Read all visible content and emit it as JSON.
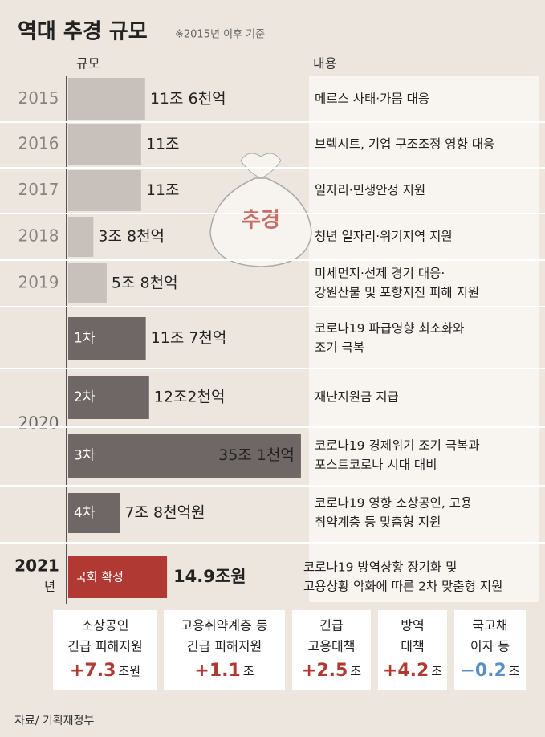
{
  "title": "역대 추경 규모",
  "note": "※2015년 이후 기준",
  "illustration_label": "추경",
  "chart_data": {
    "type": "bar",
    "column_headers": [
      "규모",
      "내용"
    ],
    "categories": [
      "2015",
      "2016",
      "2017",
      "2018",
      "2019",
      "1차",
      "2차",
      "3차",
      "4차",
      "국회 확정"
    ],
    "values": [
      11.6,
      11,
      11,
      3.8,
      5.8,
      11.7,
      12.2,
      35.1,
      7.8,
      14.9
    ],
    "value_labels": [
      "11조 6천억",
      "11조",
      "11조",
      "3조 8천억",
      "5조 8천억",
      "11조 7천억",
      "12조2천억",
      "35조 1천억",
      "7조 8천억원",
      "14.9조원"
    ],
    "descriptions": [
      [
        "메르스 사태·가뭄 대응"
      ],
      [
        "브렉시트, 기업 구조조정 영향 대응"
      ],
      [
        "일자리·민생안정 지원"
      ],
      [
        "청년 일자리·위기지역 지원"
      ],
      [
        "미세먼지·선제 경기 대응·",
        "강원산불 및 포항지진 피해 지원"
      ],
      [
        "코로나19 파급영향 최소화와",
        "조기 극복"
      ],
      [
        "재난지원금 지급"
      ],
      [
        "코로나19 경제위기 조기 극복과",
        "포스트코로나 시대 대비"
      ],
      [
        "코로나19 영향 소상공인, 고용",
        "취약계층 등 맞춤형 지원"
      ],
      [
        "코로나19 방역상황 장기화 및",
        "고용상황 악화에 따른 2차 맞춤형 지원"
      ]
    ],
    "colors": {
      "past": "#c8c1bb",
      "2020": "#6e6765",
      "2021": "#b03a33"
    },
    "year_2020": "2020",
    "year_2021": "2021",
    "year_suffix": "년"
  },
  "breakdown": [
    {
      "label": [
        "소상공인",
        "긴급 피해지원"
      ],
      "amount": "+7.3",
      "unit": "조원"
    },
    {
      "label": [
        "고용취약계층 등",
        "긴급 피해지원"
      ],
      "amount": "+1.1",
      "unit": "조"
    },
    {
      "label": [
        "긴급",
        "고용대책"
      ],
      "amount": "+2.5",
      "unit": "조"
    },
    {
      "label": [
        "방역",
        "대책"
      ],
      "amount": "+4.2",
      "unit": "조"
    },
    {
      "label": [
        "국고채",
        "이자 등"
      ],
      "amount": "−0.2",
      "unit": "조"
    }
  ],
  "source": "자료/ 기획재정부"
}
